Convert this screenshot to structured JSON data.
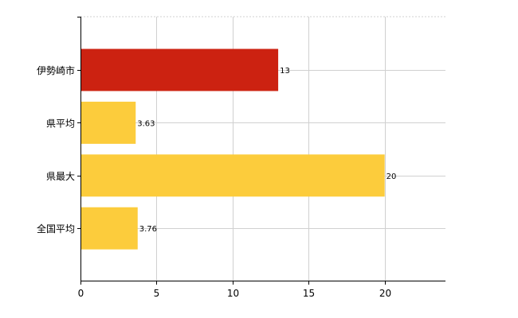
{
  "chart_data": {
    "type": "bar",
    "orientation": "horizontal",
    "categories": [
      "伊勢崎市",
      "県平均",
      "県最大",
      "全国平均"
    ],
    "values": [
      13,
      3.63,
      20,
      3.76
    ],
    "data_labels": [
      "13",
      "3.63",
      "20",
      "3.76"
    ],
    "xlim": [
      0,
      24
    ],
    "xticks": [
      0,
      5,
      10,
      15,
      20
    ],
    "grid": true,
    "legend": "none",
    "colors": {
      "highlight": "#cc2211",
      "default": "#fccc3c",
      "grid": "#d0d0d0",
      "axis": "#000000"
    },
    "highlight_index": 0
  }
}
